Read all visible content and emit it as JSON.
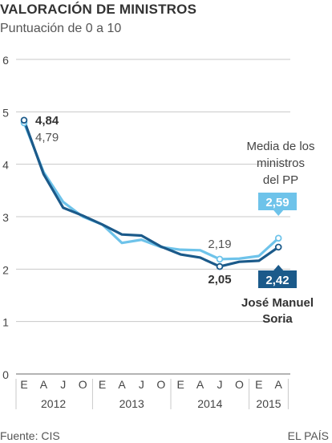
{
  "header": {
    "title": "VALORACIÓN DE MINISTROS",
    "subtitle": "Puntuación de 0 a 10"
  },
  "footer": {
    "source": "Fuente: CIS",
    "brand": "EL PAÍS"
  },
  "colors": {
    "media": "#6ec3ea",
    "soria": "#1b5a8a",
    "grid": "#c8c8c8",
    "axis": "#888888",
    "text": "#444444"
  },
  "chart_data": {
    "type": "line",
    "title": "VALORACIÓN DE MINISTROS",
    "subtitle": "Puntuación de 0 a 10",
    "ylim": [
      0,
      6
    ],
    "yticks": [
      "0",
      "1",
      "2",
      "3",
      "4",
      "5",
      "6"
    ],
    "grid": true,
    "x_categories": [
      "E",
      "A",
      "J",
      "O",
      "E",
      "A",
      "J",
      "O",
      "E",
      "A",
      "J",
      "O",
      "E",
      "A"
    ],
    "year_labels": [
      {
        "label": "2012",
        "from": 0,
        "to": 3
      },
      {
        "label": "2013",
        "from": 4,
        "to": 7
      },
      {
        "label": "2014",
        "from": 8,
        "to": 11
      },
      {
        "label": "2015",
        "from": 12,
        "to": 13
      }
    ],
    "series": [
      {
        "key": "media",
        "name": "Media de los ministros del PP",
        "name_lines": [
          "Media de los",
          "ministros",
          "del PP"
        ],
        "values": [
          4.79,
          3.85,
          3.28,
          3.0,
          2.85,
          2.5,
          2.56,
          2.42,
          2.37,
          2.36,
          2.19,
          2.2,
          2.25,
          2.59
        ],
        "start_label": "4,79",
        "mid_label": "2,19",
        "end_label": "2,59"
      },
      {
        "key": "soria",
        "name": "José Manuel Soria",
        "name_lines": [
          "José Manuel",
          "Soria"
        ],
        "values": [
          4.84,
          3.81,
          3.17,
          3.02,
          2.85,
          2.66,
          2.64,
          2.43,
          2.28,
          2.22,
          2.05,
          2.14,
          2.16,
          2.42
        ],
        "start_label": "4,84",
        "mid_label": "2,05",
        "end_label": "2,42"
      }
    ]
  }
}
